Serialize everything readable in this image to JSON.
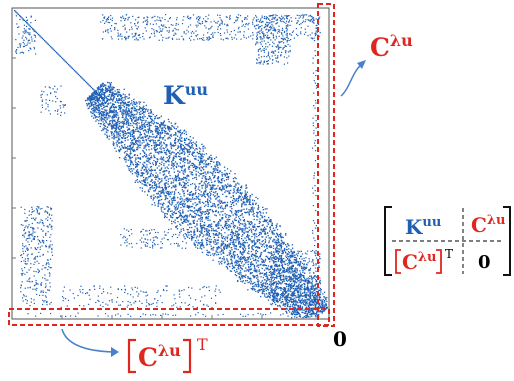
{
  "labels": {
    "kuu_main": "K",
    "kuu_main_sup": "uu",
    "c_right": "C",
    "c_right_sup": "λu",
    "c_bottom": "C",
    "c_bottom_sup": "λu",
    "c_bottom_transpose": "T",
    "zero_corner": "0"
  },
  "block_matrix": {
    "top_left": "K",
    "top_left_sup": "uu",
    "top_right": "C",
    "top_right_sup": "λu",
    "bottom_left": "C",
    "bottom_left_sup": "λu",
    "bottom_left_transpose": "T",
    "bottom_right": "0"
  },
  "colors": {
    "matrix_blue": "#1f5fb4",
    "label_blue": "#1f5fb4",
    "highlight_red": "#e0271f",
    "axis_gray": "#555555"
  }
}
